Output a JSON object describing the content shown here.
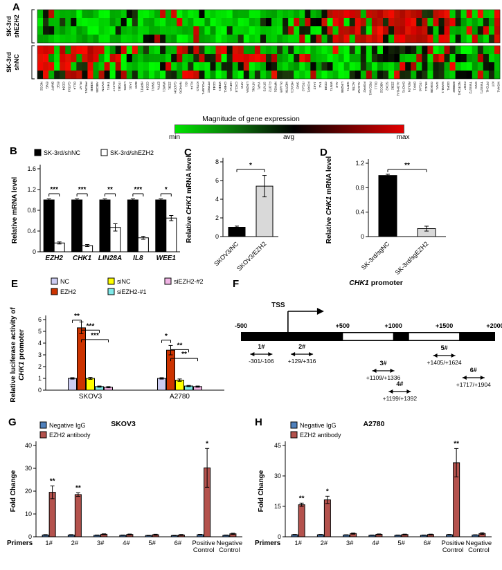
{
  "figure": {
    "letters": {
      "A": "A",
      "B": "B",
      "C": "C",
      "D": "D",
      "E": "E",
      "F": "F",
      "G": "G",
      "H": "H"
    }
  },
  "heatmap": {
    "seed": 20,
    "cols": 83,
    "row_groups": [
      {
        "label_lines": [
          "SK-3rd",
          "shEZH2"
        ],
        "rows": 4,
        "zones": [
          {
            "c0": 0,
            "c1": 3,
            "red": 0.45,
            "black": 0.2
          },
          {
            "c0": 3,
            "c1": 47,
            "red": 0.05,
            "black": 0.1
          },
          {
            "c0": 47,
            "c1": 52,
            "red": 0.3,
            "black": 0.3
          },
          {
            "c0": 52,
            "c1": 74,
            "red": 0.7,
            "black": 0.15
          },
          {
            "c0": 74,
            "c1": 82,
            "red": 0.12,
            "black": 0.25
          },
          {
            "c0": 82,
            "c1": 83,
            "red": 0.8,
            "black": 0.1
          }
        ]
      },
      {
        "label_lines": [
          "SK-3rd",
          "shNC"
        ],
        "rows": 4,
        "zones": [
          {
            "c0": 0,
            "c1": 13,
            "red": 0.55,
            "black": 0.2
          },
          {
            "c0": 13,
            "c1": 30,
            "red": 0.15,
            "black": 0.3
          },
          {
            "c0": 30,
            "c1": 44,
            "red": 0.3,
            "black": 0.25
          },
          {
            "c0": 44,
            "c1": 62,
            "red": 0.07,
            "black": 0.2
          },
          {
            "c0": 62,
            "c1": 76,
            "red": 0.12,
            "black": 0.28
          },
          {
            "c0": 76,
            "c1": 83,
            "red": 0.25,
            "black": 0.25
          }
        ]
      }
    ],
    "genes": [
      "NOS2",
      "ENG",
      "BMP7",
      "EGF",
      "CD34",
      "GATA3",
      "DLL4",
      "PLAT",
      "PROM1",
      "IKBKB",
      "ABCB5",
      "MYCN",
      "THY1",
      "KLF17",
      "ITGB1",
      "LGR5",
      "JAG1",
      "B2M",
      "HPRT1",
      "CD24",
      "SNAI1",
      "ETFA",
      "WWC1",
      "ZEB1",
      "GAPDH",
      "NANOG",
      "ID1",
      "KLF4",
      "KITLG",
      "POU5F1",
      "PTPRC",
      "CD44",
      "WEE1",
      "CHEK1",
      "HIF1A",
      "CXCL8",
      "ATM",
      "LIN28A",
      "ATXN1",
      "YAP1",
      "STAT3",
      "FLOT2",
      "NFKB1",
      "PLAUR",
      "MERTK",
      "HDAC1",
      "SMO",
      "ITGA2",
      "FOXP1",
      "JAK2",
      "TAZ",
      "CD38",
      "WNT1",
      "ALK",
      "LIN28B",
      "SIRT1",
      "ACTB",
      "ALCAM",
      "FGFR2",
      "PECAM1",
      "DLL1",
      "ABCG2",
      "SOX2",
      "ZEB2",
      "ALDH1A1",
      "DACH1",
      "RPLP0",
      "DKK1",
      "ITGA6",
      "MUC1",
      "GSK3B",
      "SAV1",
      "MAML1",
      "DDR1",
      "ERBB2",
      "NOTCH1",
      "FZD7",
      "TWIST2",
      "MYC",
      "TWIST1",
      "PTCH1",
      "KIT",
      "MS4A1"
    ],
    "scale": {
      "title": "Magnitude of gene expression",
      "min": "min",
      "avg": "avg",
      "max": "max",
      "min_color": "#00e400",
      "mid_color": "#000000",
      "max_color": "#e40000"
    }
  },
  "chart_data": [
    {
      "id": "B",
      "type": "bar",
      "ylabel": "Relative mRNA level",
      "ylim": [
        0,
        1.6
      ],
      "yticks": [
        0,
        0.4,
        0.8,
        1.2,
        1.6
      ],
      "categories": [
        "EZH2",
        "CHK1",
        "LIN28A",
        "IL8",
        "WEE1"
      ],
      "xticks_italic": true,
      "series": [
        {
          "name": "SK-3rd/shNC",
          "color": "#000000",
          "values": [
            1,
            1,
            1,
            1,
            1
          ],
          "errors": [
            0.02,
            0.02,
            0.02,
            0.02,
            0.02
          ]
        },
        {
          "name": "SK-3rd/shEZH2",
          "color": "#ffffff",
          "values": [
            0.17,
            0.12,
            0.47,
            0.27,
            0.65
          ],
          "errors": [
            0.02,
            0.02,
            0.07,
            0.03,
            0.05
          ]
        }
      ],
      "sig": [
        "***",
        "***",
        "**",
        "***",
        "*"
      ],
      "sig_y": 1.12
    },
    {
      "id": "C",
      "type": "bar",
      "ylabel": "Relative CHK1 mRNA level",
      "ylabel_italic": [
        "CHK1"
      ],
      "ylim": [
        0,
        8
      ],
      "yticks": [
        0,
        2,
        4,
        6,
        8
      ],
      "categories": [
        "SKOV3/NC",
        "SKOV3/EZH2"
      ],
      "series": [
        {
          "name": "",
          "colors": [
            "#000000",
            "#d9d9d9"
          ],
          "values": [
            1,
            5.4
          ],
          "errors": [
            0.12,
            1.15
          ]
        }
      ],
      "bracket": {
        "label": "*",
        "y": 7.2
      }
    },
    {
      "id": "D",
      "type": "bar",
      "ylabel": "Relative CHK1 mRNA level",
      "ylabel_italic": [
        "CHK1"
      ],
      "ylim": [
        0,
        1.2
      ],
      "yticks": [
        0,
        0.4,
        0.8,
        1.2
      ],
      "categories": [
        "SK-3rd/sgNC",
        "SK-3rd/sgEZH2"
      ],
      "series": [
        {
          "name": "",
          "colors": [
            "#000000",
            "#d9d9d9"
          ],
          "values": [
            1,
            0.13
          ],
          "errors": [
            0.02,
            0.04
          ]
        }
      ],
      "bracket": {
        "label": "**",
        "y": 1.1
      }
    },
    {
      "id": "E",
      "type": "grouped-bar",
      "ylabel_lines": [
        "Relative luciferase activity of",
        "CHK1 promoter"
      ],
      "ylabel_italic": [
        "CHK1"
      ],
      "ylim": [
        0,
        6
      ],
      "yticks": [
        0,
        1,
        2,
        3,
        4,
        5,
        6
      ],
      "categories": [
        "SKOV3",
        "A2780"
      ],
      "series": [
        {
          "name": "NC",
          "color": "#ccccf2",
          "values": [
            1,
            1
          ],
          "errors": [
            0.06,
            0.06
          ]
        },
        {
          "name": "EZH2",
          "color": "#cc3300",
          "values": [
            5.3,
            3.4
          ],
          "errors": [
            0.5,
            0.4
          ]
        },
        {
          "name": "siNC",
          "color": "#ffff00",
          "values": [
            1,
            0.85
          ],
          "errors": [
            0.08,
            0.1
          ]
        },
        {
          "name": "siEZH2-#1",
          "color": "#7fe9e9",
          "values": [
            0.3,
            0.35
          ],
          "errors": [
            0.05,
            0.05
          ]
        },
        {
          "name": "siEZH2-#2",
          "color": "#f0b4e4",
          "values": [
            0.25,
            0.3
          ],
          "errors": [
            0.05,
            0.05
          ]
        }
      ],
      "brackets": [
        {
          "cat": 0,
          "a": 0,
          "b": 1,
          "y": 5.95,
          "label": "**"
        },
        {
          "cat": 0,
          "a": 1,
          "b": 3,
          "y": 5.1,
          "label": "***"
        },
        {
          "cat": 0,
          "a": 1,
          "b": 4,
          "y": 4.3,
          "label": "***"
        },
        {
          "cat": 1,
          "a": 0,
          "b": 1,
          "y": 4.25,
          "label": "*"
        },
        {
          "cat": 1,
          "a": 1,
          "b": 3,
          "y": 3.45,
          "label": "**"
        },
        {
          "cat": 1,
          "a": 1,
          "b": 4,
          "y": 2.7,
          "label": "**"
        }
      ]
    },
    {
      "id": "G",
      "type": "grouped-bar",
      "title": "SKOV3",
      "ylabel": "Fold Change",
      "ylim": [
        0,
        40
      ],
      "yticks": [
        0,
        10,
        20,
        30,
        40
      ],
      "xlabel": "Primers",
      "categories": [
        "1#",
        "2#",
        "3#",
        "4#",
        "5#",
        "6#",
        "Positive\nControl",
        "Negative\nControl"
      ],
      "series": [
        {
          "name": "Negative IgG",
          "color": "#4f81bd",
          "values": [
            0.8,
            0.8,
            0.7,
            0.7,
            0.6,
            0.6,
            0.9,
            0.7
          ],
          "errors": [
            0.15,
            0.15,
            0.1,
            0.1,
            0.1,
            0.1,
            0.15,
            0.1
          ]
        },
        {
          "name": "EZH2 antibody",
          "color": "#b4524d",
          "values": [
            19.5,
            18.5,
            1.1,
            1,
            0.9,
            0.8,
            30.2,
            1.3
          ],
          "errors": [
            2.8,
            0.8,
            0.2,
            0.2,
            0.2,
            0.2,
            8.5,
            0.3
          ]
        }
      ],
      "stars": [
        "**",
        "**",
        "",
        "",
        "",
        "",
        "*",
        ""
      ]
    },
    {
      "id": "H",
      "type": "grouped-bar",
      "title": "A2780",
      "ylabel": "Fold Change",
      "ylim": [
        0,
        45
      ],
      "yticks": [
        0,
        15,
        30,
        45
      ],
      "xlabel": "Primers",
      "categories": [
        "1#",
        "2#",
        "3#",
        "4#",
        "5#",
        "6#",
        "Positive\nControl",
        "Negative\nControl"
      ],
      "series": [
        {
          "name": "Negative IgG",
          "color": "#4f81bd",
          "values": [
            1,
            1,
            0.9,
            0.8,
            0.8,
            0.8,
            1,
            0.9
          ],
          "errors": [
            0.15,
            0.15,
            0.1,
            0.1,
            0.1,
            0.1,
            0.15,
            0.1
          ]
        },
        {
          "name": "EZH2 antibody",
          "color": "#b4524d",
          "values": [
            15.8,
            18.2,
            1.6,
            1.2,
            1.1,
            1.1,
            36.5,
            1.6
          ],
          "errors": [
            0.8,
            1.8,
            0.3,
            0.2,
            0.2,
            0.2,
            7,
            0.4
          ]
        }
      ],
      "stars": [
        "**",
        "*",
        "",
        "",
        "",
        "",
        "**",
        ""
      ]
    }
  ],
  "promoter": {
    "title_gene": "CHK1",
    "title_rest": "promoter",
    "tss": "TSS",
    "coords": [
      "-500",
      "+500",
      "+1000",
      "+1500",
      "+2000"
    ],
    "primers": [
      {
        "label": "1#",
        "range": "-301/-106"
      },
      {
        "label": "2#",
        "range": "+129/+316"
      },
      {
        "label": "3#",
        "range": "+1109/+1336"
      },
      {
        "label": "4#",
        "range": "+1199/+1392"
      },
      {
        "label": "5#",
        "range": "+1405/+1624"
      },
      {
        "label": "6#",
        "range": "+1717/+1904"
      }
    ]
  }
}
